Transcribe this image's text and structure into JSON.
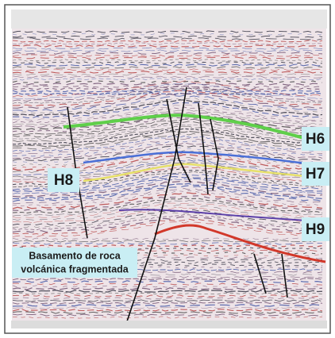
{
  "labels": {
    "h6": "H6",
    "h7": "H7",
    "h8": "H8",
    "h9": "H9",
    "basement": [
      "Basamento de roca",
      "volcánica fragmentada"
    ]
  }
}
